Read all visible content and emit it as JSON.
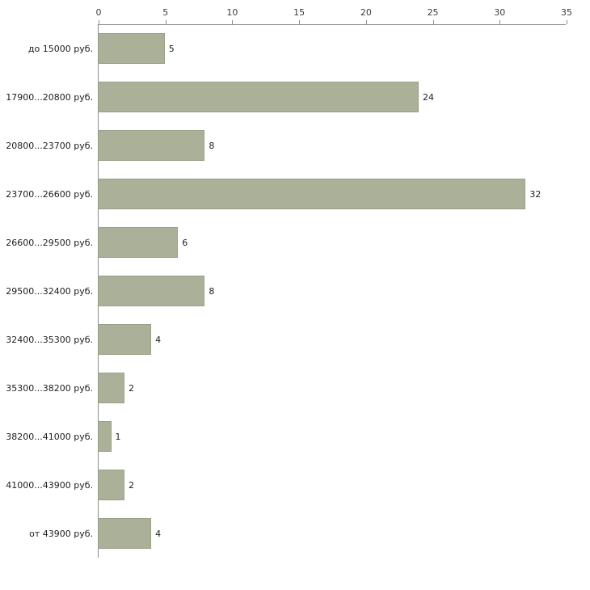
{
  "chart_data": {
    "type": "bar",
    "orientation": "horizontal",
    "title": "",
    "xlabel": "",
    "ylabel": "",
    "categories": [
      "до 15000 руб.",
      "17900...20800 руб.",
      "20800...23700 руб.",
      "23700...26600 руб.",
      "26600...29500 руб.",
      "29500...32400 руб.",
      "32400...35300 руб.",
      "35300...38200 руб.",
      "38200...41000 руб.",
      "41000...43900 руб.",
      "от 43900 руб."
    ],
    "values": [
      5,
      24,
      8,
      32,
      6,
      8,
      4,
      2,
      1,
      2,
      4
    ],
    "x_ticks": [
      "0",
      "5",
      "10",
      "15",
      "20",
      "25",
      "30",
      "35"
    ],
    "xlim": [
      0,
      35
    ],
    "grid": false,
    "legend": "none",
    "bar_color": "#abb199",
    "bar_border_color": "#99a088",
    "axis_color": "#8c8c8c"
  }
}
